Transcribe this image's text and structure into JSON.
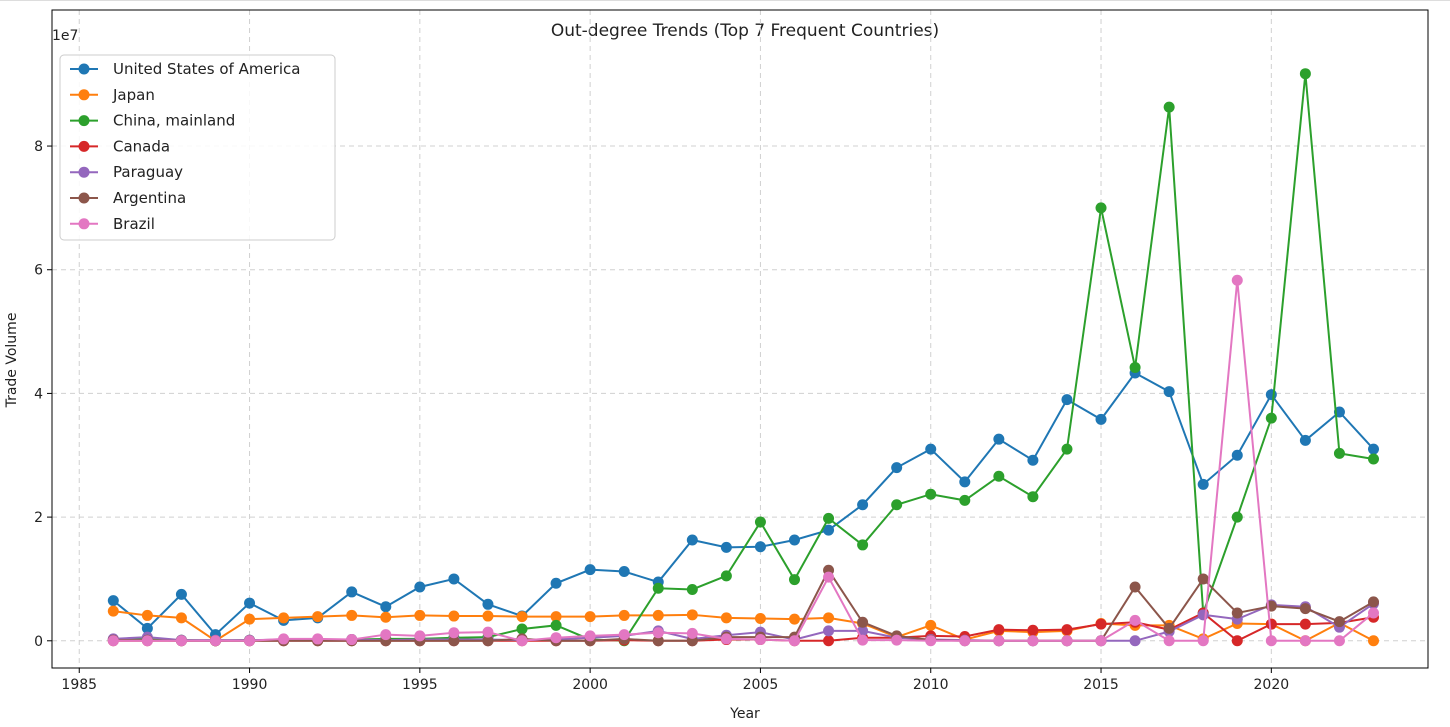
{
  "chart_data": {
    "type": "line",
    "title": "Out-degree Trends (Top 7 Frequent Countries)",
    "xlabel": "Year",
    "ylabel": "Trade Volume",
    "y_offset_label": "1e7",
    "xlim": [
      1984.2,
      2024.6
    ],
    "ylim": [
      -0.44,
      10.2
    ],
    "xticks": [
      1985,
      1990,
      1995,
      2000,
      2005,
      2010,
      2015,
      2020
    ],
    "yticks": [
      0,
      2,
      4,
      6,
      8
    ],
    "grid": true,
    "legend_position": "top-left",
    "x": [
      1986,
      1987,
      1988,
      1989,
      1990,
      1991,
      1992,
      1993,
      1994,
      1995,
      1996,
      1997,
      1998,
      1999,
      2000,
      2001,
      2002,
      2003,
      2004,
      2005,
      2006,
      2007,
      2008,
      2009,
      2010,
      2011,
      2012,
      2013,
      2014,
      2015,
      2016,
      2017,
      2018,
      2019,
      2020,
      2021,
      2022,
      2023
    ],
    "series": [
      {
        "name": "United States of America",
        "color": "#1f77b4",
        "values": [
          0.65,
          0.2,
          0.75,
          0.1,
          0.61,
          0.33,
          0.37,
          0.79,
          0.55,
          0.87,
          1.0,
          0.59,
          0.4,
          0.93,
          1.15,
          1.12,
          0.95,
          1.63,
          1.51,
          1.52,
          1.63,
          1.79,
          2.2,
          2.8,
          3.1,
          2.57,
          3.26,
          2.92,
          3.9,
          3.58,
          4.33,
          4.03,
          2.53,
          3.0,
          3.98,
          3.24,
          3.7,
          3.1
        ]
      },
      {
        "name": "Japan",
        "color": "#ff7f0e",
        "values": [
          0.48,
          0.41,
          0.37,
          0.0,
          0.35,
          0.37,
          0.39,
          0.41,
          0.38,
          0.41,
          0.4,
          0.4,
          0.39,
          0.39,
          0.39,
          0.41,
          0.41,
          0.42,
          0.37,
          0.36,
          0.35,
          0.37,
          0.28,
          0.06,
          0.25,
          0.02,
          0.16,
          0.14,
          0.16,
          0.28,
          0.25,
          0.25,
          0.03,
          0.28,
          0.27,
          0.0,
          0.29,
          0.0
        ]
      },
      {
        "name": "China, mainland",
        "color": "#2ca02c",
        "values": [
          0.02,
          0.02,
          0.01,
          0.0,
          0.01,
          0.01,
          0.02,
          0.02,
          0.03,
          0.03,
          0.05,
          0.06,
          0.19,
          0.25,
          0.02,
          0.0,
          0.85,
          0.83,
          1.05,
          1.92,
          0.99,
          1.98,
          1.55,
          2.2,
          2.37,
          2.27,
          2.66,
          2.33,
          3.1,
          7.0,
          4.42,
          8.63,
          0.45,
          2.0,
          3.6,
          9.17,
          3.03,
          2.94
        ]
      },
      {
        "name": "Canada",
        "color": "#d62728",
        "values": [
          0.0,
          0.0,
          0.0,
          0.0,
          0.0,
          0.0,
          0.0,
          0.0,
          0.0,
          0.0,
          0.0,
          0.0,
          0.0,
          0.0,
          0.0,
          0.01,
          0.0,
          0.0,
          0.02,
          0.02,
          0.0,
          0.0,
          0.05,
          0.05,
          0.08,
          0.07,
          0.18,
          0.17,
          0.18,
          0.27,
          0.3,
          0.18,
          0.45,
          0.0,
          0.27,
          0.27,
          0.29,
          0.38
        ]
      },
      {
        "name": "Paraguay",
        "color": "#9467bd",
        "values": [
          0.03,
          0.06,
          0.01,
          0.01,
          0.01,
          0.02,
          0.02,
          0.02,
          0.01,
          0.02,
          0.02,
          0.02,
          0.01,
          0.02,
          0.05,
          0.08,
          0.16,
          0.03,
          0.09,
          0.14,
          0.02,
          0.16,
          0.16,
          0.05,
          0.02,
          0.01,
          0.0,
          0.0,
          0.0,
          0.0,
          0.0,
          0.15,
          0.42,
          0.35,
          0.58,
          0.55,
          0.22,
          0.6
        ]
      },
      {
        "name": "Argentina",
        "color": "#8c564b",
        "values": [
          0.01,
          0.01,
          0.0,
          0.0,
          0.0,
          0.0,
          0.0,
          0.0,
          0.0,
          0.0,
          0.0,
          0.0,
          0.03,
          0.0,
          0.0,
          0.03,
          0.0,
          0.0,
          0.06,
          0.06,
          0.06,
          1.14,
          0.3,
          0.08,
          0.01,
          0.0,
          0.0,
          0.0,
          0.0,
          0.0,
          0.87,
          0.2,
          1.0,
          0.45,
          0.56,
          0.52,
          0.31,
          0.63
        ]
      },
      {
        "name": "Brazil",
        "color": "#e377c2",
        "values": [
          0.0,
          0.0,
          0.0,
          0.0,
          0.0,
          0.03,
          0.03,
          0.02,
          0.1,
          0.08,
          0.13,
          0.14,
          0.0,
          0.05,
          0.08,
          0.1,
          0.13,
          0.12,
          0.03,
          0.02,
          0.0,
          1.03,
          0.01,
          0.01,
          0.0,
          0.0,
          0.0,
          0.0,
          0.0,
          0.0,
          0.33,
          0.0,
          0.0,
          5.83,
          0.0,
          0.0,
          0.0,
          0.45
        ]
      }
    ]
  }
}
